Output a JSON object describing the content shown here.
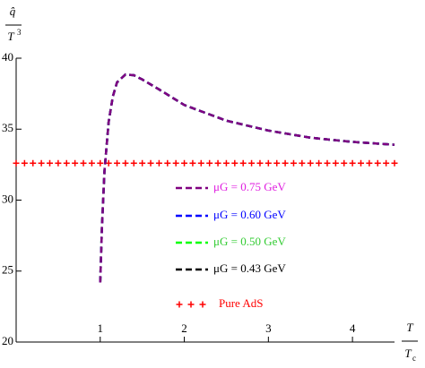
{
  "chart_data": {
    "type": "line",
    "ylabel": {
      "numerator": "q̂",
      "denominator": "T",
      "denominator_sup": "3"
    },
    "xlabel": {
      "numerator": "T",
      "denominator": "T",
      "denominator_sub": "c"
    },
    "x": [
      1,
      1.02,
      1.05,
      1.1,
      1.15,
      1.2,
      1.3,
      1.4,
      1.5,
      1.7,
      2,
      2.5,
      3,
      3.5,
      4,
      4.5
    ],
    "series": [
      {
        "name": "μG = 0.75 GeV",
        "color": "#800080",
        "label_color": "#e020e0",
        "values": [
          24.2,
          28,
          32,
          35.5,
          37.3,
          38.3,
          38.85,
          38.8,
          38.5,
          37.8,
          36.7,
          35.6,
          34.9,
          34.4,
          34.1,
          33.9
        ]
      },
      {
        "name": "μG = 0.60 GeV",
        "color": "#0000ff",
        "label_color": "#0000ff",
        "values": [
          24.2,
          28,
          32,
          35.5,
          37.3,
          38.3,
          38.85,
          38.8,
          38.5,
          37.8,
          36.7,
          35.6,
          34.9,
          34.4,
          34.1,
          33.9
        ]
      },
      {
        "name": "μG = 0.50 GeV",
        "color": "#00ff00",
        "label_color": "#33cc33",
        "values": [
          24.2,
          28,
          32,
          35.5,
          37.3,
          38.3,
          38.85,
          38.8,
          38.5,
          37.8,
          36.7,
          35.6,
          34.9,
          34.4,
          34.1,
          33.9
        ]
      },
      {
        "name": "μG = 0.43 GeV",
        "color": "#000000",
        "label_color": "#000000",
        "values": [
          24.2,
          28,
          32,
          35.5,
          37.3,
          38.3,
          38.85,
          38.8,
          38.5,
          37.8,
          36.7,
          35.6,
          34.9,
          34.4,
          34.1,
          33.9
        ]
      },
      {
        "name": "Pure AdS",
        "color": "#ff0000",
        "label_color": "#ff0000",
        "marker": "+",
        "x": [
          0,
          0.1,
          0.2,
          0.3,
          0.4,
          0.5,
          0.6,
          0.7,
          0.8,
          0.9,
          1,
          1.1,
          1.2,
          1.3,
          1.4,
          1.5,
          1.6,
          1.7,
          1.8,
          1.9,
          2,
          2.1,
          2.2,
          2.3,
          2.4,
          2.5,
          2.6,
          2.7,
          2.8,
          2.9,
          3,
          3.1,
          3.2,
          3.3,
          3.4,
          3.5,
          3.6,
          3.7,
          3.8,
          3.9,
          4,
          4.1,
          4.2,
          4.3,
          4.4,
          4.5
        ],
        "values": [
          32.6,
          32.6,
          32.6,
          32.6,
          32.6,
          32.6,
          32.6,
          32.6,
          32.6,
          32.6,
          32.6,
          32.6,
          32.6,
          32.6,
          32.6,
          32.6,
          32.6,
          32.6,
          32.6,
          32.6,
          32.6,
          32.6,
          32.6,
          32.6,
          32.6,
          32.6,
          32.6,
          32.6,
          32.6,
          32.6,
          32.6,
          32.6,
          32.6,
          32.6,
          32.6,
          32.6,
          32.6,
          32.6,
          32.6,
          32.6,
          32.6,
          32.6,
          32.6,
          32.6,
          32.6,
          32.6
        ]
      }
    ],
    "xlim": [
      0,
      4.5
    ],
    "ylim": [
      20,
      40
    ],
    "xticks": [
      1,
      2,
      3,
      4
    ],
    "yticks": [
      20,
      25,
      30,
      35,
      40
    ]
  }
}
